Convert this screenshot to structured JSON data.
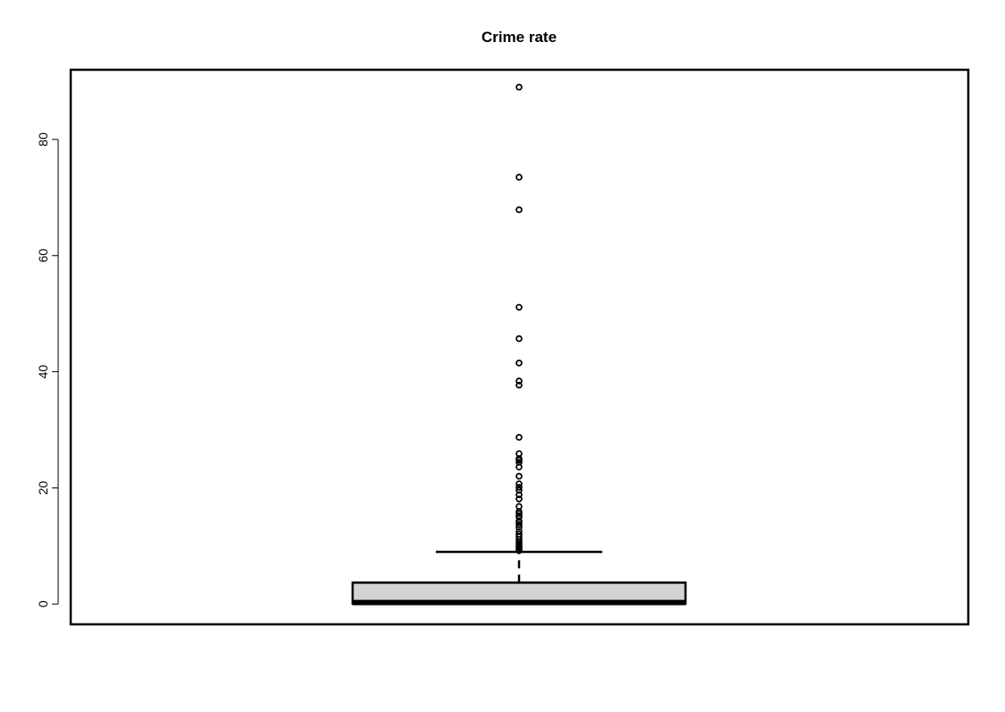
{
  "chart_data": {
    "type": "boxplot",
    "title": "Crime rate",
    "xlabel": "",
    "ylabel": "",
    "ylim": [
      -3.5,
      92
    ],
    "yticks": [
      0,
      20,
      40,
      60,
      80
    ],
    "grid": false,
    "box": {
      "min": 0.006,
      "q1": 0.08,
      "median": 0.26,
      "q3": 3.68,
      "whisker_high": 8.98
    },
    "outliers": [
      9.2,
      9.4,
      9.7,
      9.9,
      10.1,
      10.4,
      10.7,
      11.1,
      11.6,
      12.0,
      12.5,
      13.2,
      13.7,
      14.1,
      14.3,
      15.0,
      15.2,
      15.6,
      15.9,
      16.8,
      18.1,
      18.8,
      19.6,
      20.1,
      20.7,
      22.0,
      23.6,
      24.4,
      24.8,
      25.0,
      25.9,
      28.7,
      37.7,
      38.4,
      41.5,
      45.7,
      51.1,
      67.9,
      73.5,
      89.0
    ],
    "colors": {
      "box_fill": "#d3d3d3",
      "stroke": "#000000"
    }
  }
}
